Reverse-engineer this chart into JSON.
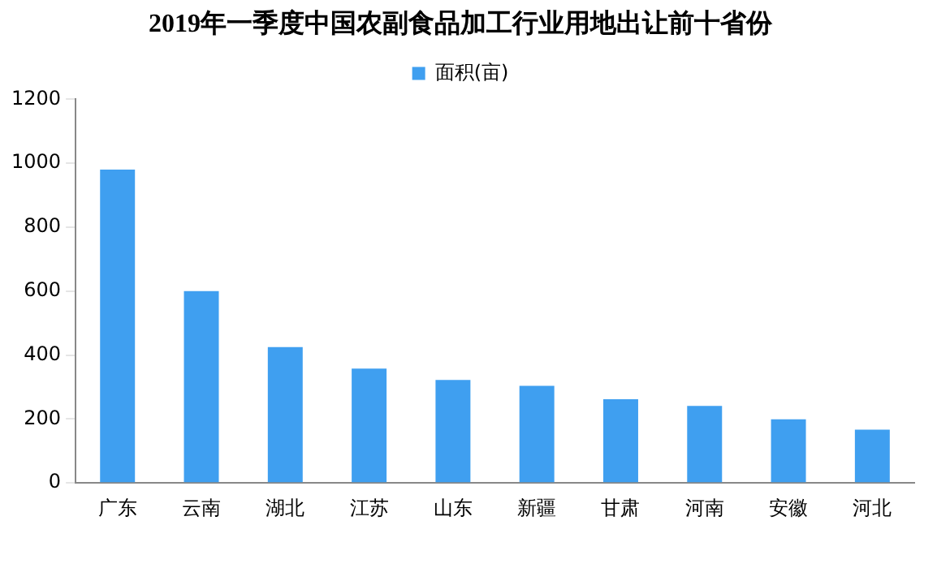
{
  "chart_data": {
    "type": "bar",
    "title": "2019年一季度中国农副食品加工行业用地出让前十省份",
    "categories": [
      "广东",
      "云南",
      "湖北",
      "江苏",
      "山东",
      "新疆",
      "甘肃",
      "河南",
      "安徽",
      "河北"
    ],
    "series": [
      {
        "name": "面积(亩)",
        "color": "#3f9ff0",
        "values": [
          980,
          600,
          425,
          358,
          322,
          304,
          262,
          241,
          199,
          167
        ]
      }
    ],
    "ylim": [
      0,
      1200
    ],
    "yticks": [
      0,
      200,
      400,
      600,
      800,
      1000,
      1200
    ],
    "grid": false,
    "legend": "top"
  }
}
